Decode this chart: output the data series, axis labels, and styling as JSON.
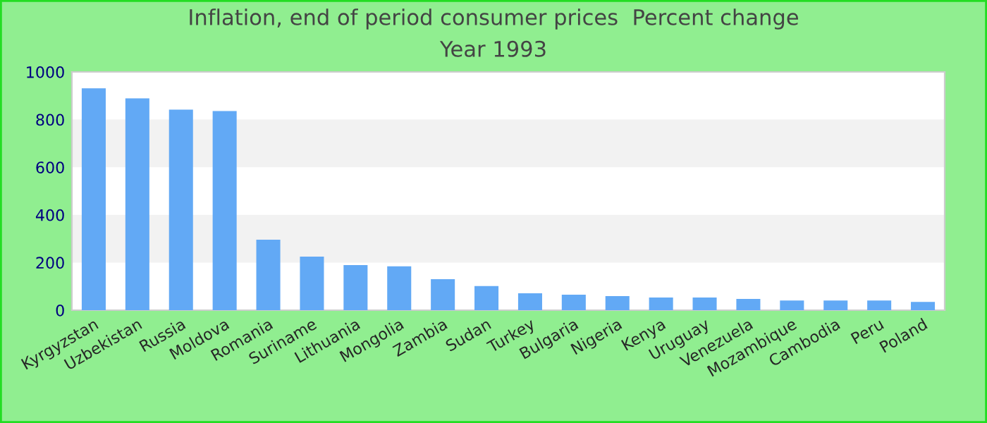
{
  "chart_data": {
    "type": "bar",
    "title": "Inflation, end of period consumer prices  Percent change",
    "subtitle": "Year 1993",
    "categories": [
      "Kyrgyzstan",
      "Uzbekistan",
      "Russia",
      "Moldova",
      "Romania",
      "Suriname",
      "Lithuania",
      "Mongolia",
      "Zambia",
      "Sudan",
      "Turkey",
      "Bulgaria",
      "Nigeria",
      "Kenya",
      "Uruguay",
      "Venezuela",
      "Mozambique",
      "Cambodia",
      "Peru",
      "Poland"
    ],
    "values": [
      931,
      889,
      842,
      836,
      296,
      225,
      189,
      184,
      130,
      101,
      71,
      65,
      59,
      53,
      53,
      47,
      41,
      41,
      41,
      35
    ],
    "color": "#62a9f5",
    "ylim": [
      0,
      1000
    ],
    "yticks": [
      0,
      200,
      400,
      600,
      800,
      1000
    ],
    "bands": [
      {
        "axis": "y",
        "from": 200,
        "to": 400,
        "color": "#f2f2f2"
      },
      {
        "axis": "y",
        "from": 600,
        "to": 800,
        "color": "#f2f2f2"
      }
    ],
    "grid": false
  }
}
